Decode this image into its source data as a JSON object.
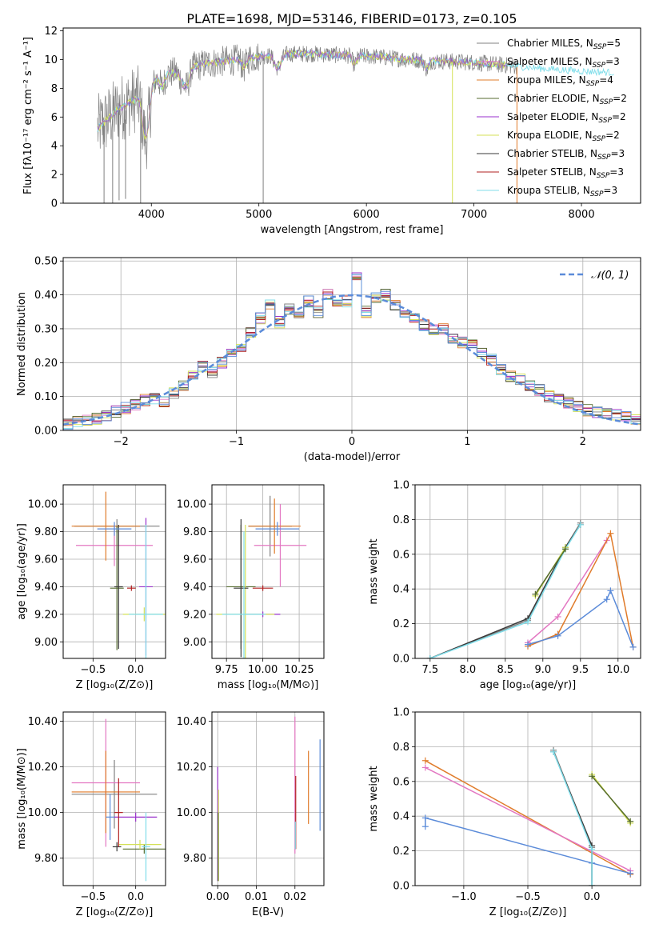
{
  "title": "PLATE=1698, MJD=53146, FIBERID=0173, z=0.105",
  "colors": {
    "Chabrier MILES": "#808080",
    "Salpeter MILES": "#e377c2",
    "Kroupa MILES": "#e07b2a",
    "Chabrier ELODIE": "#556b2f",
    "Salpeter ELODIE": "#9932cc",
    "Kroupa ELODIE": "#d4e157",
    "Chabrier STELIB": "#3a3a3a",
    "Salpeter STELIB": "#b22222",
    "Kroupa STELIB": "#80deea",
    "blue": "#5b8bd9",
    "grid": "#b0b0b0"
  },
  "chart_data": [
    {
      "id": "spectrum",
      "type": "line",
      "xlabel": "wavelength [Angstrom, rest frame]",
      "ylabel": "Flux [fλ10⁻¹⁷ erg cm⁻² s⁻¹ A⁻¹]",
      "xlim": [
        3180,
        8550
      ],
      "ylim": [
        0,
        12.2
      ],
      "xticks": [
        4000,
        5000,
        6000,
        7000,
        8000
      ],
      "yticks": [
        0,
        2,
        4,
        6,
        8,
        10,
        12
      ],
      "grid": false,
      "legend_position": "upper-right",
      "legend": [
        {
          "label": "Chabrier MILES, N",
          "sub": "SSP",
          "suffix": "=5",
          "colorKey": "Chabrier MILES"
        },
        {
          "label": "Salpeter MILES, N",
          "sub": "SSP",
          "suffix": "=3",
          "colorKey": "Salpeter MILES"
        },
        {
          "label": "Kroupa MILES, N",
          "sub": "SSP",
          "suffix": "=4",
          "colorKey": "Kroupa MILES"
        },
        {
          "label": "Chabrier ELODIE, N",
          "sub": "SSP",
          "suffix": "=2",
          "colorKey": "Chabrier ELODIE"
        },
        {
          "label": "Salpeter ELODIE, N",
          "sub": "SSP",
          "suffix": "=2",
          "colorKey": "Salpeter ELODIE"
        },
        {
          "label": "Kroupa ELODIE, N",
          "sub": "SSP",
          "suffix": "=2",
          "colorKey": "Kroupa ELODIE"
        },
        {
          "label": "Chabrier STELIB, N",
          "sub": "SSP",
          "suffix": "=3",
          "colorKey": "Chabrier STELIB"
        },
        {
          "label": "Salpeter STELIB, N",
          "sub": "SSP",
          "suffix": "=3",
          "colorKey": "Salpeter STELIB"
        },
        {
          "label": "Kroupa STELIB, N",
          "sub": "SSP",
          "suffix": "=3",
          "colorKey": "Kroupa STELIB"
        }
      ],
      "continuum": {
        "x": [
          3500,
          3600,
          3700,
          3800,
          3900,
          4000,
          4100,
          4200,
          4300,
          4500,
          4700,
          4900,
          5100,
          5300,
          5500,
          5800,
          6100,
          6400,
          6700,
          7000,
          7300,
          7600,
          8000,
          8300
        ],
        "y": [
          5.2,
          5.9,
          6.6,
          7.0,
          7.5,
          8.4,
          8.9,
          9.1,
          9.3,
          9.7,
          9.9,
          10.1,
          10.3,
          10.4,
          10.4,
          10.3,
          10.2,
          10.0,
          9.9,
          9.8,
          9.6,
          9.4,
          9.2,
          9.1
        ]
      }
    },
    {
      "id": "residuals",
      "type": "histogram",
      "xlabel": "(data-model)/error",
      "ylabel": "Normed distribution",
      "xlim": [
        -2.5,
        2.5
      ],
      "ylim": [
        0,
        0.51
      ],
      "xticks": [
        -2,
        -1,
        0,
        1,
        2
      ],
      "yticks": [
        0.0,
        0.1,
        0.2,
        0.3,
        0.4,
        0.5
      ],
      "grid": true,
      "legend_position": "upper-right",
      "legend_label": "𝒩(0, 1)",
      "bin_edges_start": -2.5,
      "bin_width": 0.1,
      "base_values": [
        0.02,
        0.025,
        0.03,
        0.035,
        0.04,
        0.055,
        0.065,
        0.075,
        0.09,
        0.095,
        0.085,
        0.11,
        0.13,
        0.16,
        0.19,
        0.17,
        0.2,
        0.23,
        0.25,
        0.29,
        0.33,
        0.37,
        0.32,
        0.36,
        0.34,
        0.38,
        0.35,
        0.4,
        0.37,
        0.38,
        0.45,
        0.35,
        0.39,
        0.4,
        0.37,
        0.35,
        0.33,
        0.31,
        0.3,
        0.3,
        0.27,
        0.26,
        0.25,
        0.23,
        0.21,
        0.18,
        0.16,
        0.15,
        0.13,
        0.12,
        0.1,
        0.09,
        0.08,
        0.07,
        0.06,
        0.055,
        0.05,
        0.045,
        0.04,
        0.035
      ],
      "normal_curve": {
        "mean": 0,
        "sigma": 1
      }
    },
    {
      "id": "age-vs-Z",
      "type": "errorbar",
      "xlabel": "Z [log₁₀(Z/Z⊙)]",
      "ylabel": "age  [log₁₀(age/yr)]",
      "xlim": [
        -0.85,
        0.35
      ],
      "ylim": [
        8.88,
        10.14
      ],
      "xticks": [
        -0.5,
        0.0
      ],
      "yticks": [
        9.0,
        9.2,
        9.4,
        9.6,
        9.8,
        10.0
      ],
      "grid": true,
      "points": [
        {
          "x": -0.22,
          "y": 9.84,
          "xerr": 0.5,
          "yerr": 0.05,
          "colorKey": "Chabrier MILES"
        },
        {
          "x": -0.25,
          "y": 9.7,
          "xerr": 0.45,
          "yerr": 0.15,
          "colorKey": "Salpeter MILES"
        },
        {
          "x": -0.35,
          "y": 9.84,
          "xerr": 0.4,
          "yerr": 0.25,
          "colorKey": "Kroupa MILES"
        },
        {
          "x": -0.22,
          "y": 9.39,
          "xerr": 0.08,
          "yerr": 0.45,
          "colorKey": "Chabrier ELODIE"
        },
        {
          "x": 0.12,
          "y": 9.4,
          "xerr": 0.08,
          "yerr": 0.5,
          "colorKey": "Salpeter ELODIE"
        },
        {
          "x": 0.1,
          "y": 9.2,
          "xerr": 0.25,
          "yerr": 0.05,
          "colorKey": "Kroupa ELODIE"
        },
        {
          "x": -0.2,
          "y": 9.4,
          "xerr": 0.05,
          "yerr": 0.45,
          "colorKey": "Chabrier STELIB"
        },
        {
          "x": -0.05,
          "y": 9.39,
          "xerr": 0.05,
          "yerr": 0.02,
          "colorKey": "Salpeter STELIB"
        },
        {
          "x": 0.12,
          "y": 9.2,
          "xerr": 0.2,
          "yerr": 0.65,
          "colorKey": "Kroupa STELIB"
        },
        {
          "x": -0.25,
          "y": 9.82,
          "xerr": 0.2,
          "yerr": 0.05,
          "colorKey": "blue"
        }
      ]
    },
    {
      "id": "age-vs-mass",
      "type": "errorbar",
      "xlabel": "mass [log₁₀(M/M⊙)]",
      "ylabel": "",
      "xlim": [
        9.65,
        10.42
      ],
      "ylim": [
        8.88,
        10.14
      ],
      "xticks": [
        9.75,
        10.0,
        10.25
      ],
      "yticks": [
        9.0,
        9.2,
        9.4,
        9.6,
        9.8,
        10.0
      ],
      "grid": true,
      "points": [
        {
          "x": 10.05,
          "y": 9.84,
          "xerr": 0.15,
          "yerr": 0.22,
          "colorKey": "Chabrier MILES"
        },
        {
          "x": 10.12,
          "y": 9.7,
          "xerr": 0.18,
          "yerr": 0.3,
          "colorKey": "Salpeter MILES"
        },
        {
          "x": 10.08,
          "y": 9.84,
          "xerr": 0.18,
          "yerr": 0.2,
          "colorKey": "Kroupa MILES"
        },
        {
          "x": 9.85,
          "y": 9.4,
          "xerr": 0.1,
          "yerr": 0.45,
          "colorKey": "Chabrier ELODIE"
        },
        {
          "x": 10.0,
          "y": 9.2,
          "xerr": 0.12,
          "yerr": 0.02,
          "colorKey": "Salpeter ELODIE"
        },
        {
          "x": 9.88,
          "y": 9.2,
          "xerr": 0.2,
          "yerr": 0.65,
          "colorKey": "Kroupa ELODIE"
        },
        {
          "x": 9.85,
          "y": 9.39,
          "xerr": 0.05,
          "yerr": 0.5,
          "colorKey": "Chabrier STELIB"
        },
        {
          "x": 10.0,
          "y": 9.39,
          "xerr": 0.07,
          "yerr": 0.02,
          "colorKey": "Salpeter STELIB"
        },
        {
          "x": 9.87,
          "y": 9.2,
          "xerr": 0.15,
          "yerr": 0.6,
          "colorKey": "Kroupa STELIB"
        },
        {
          "x": 10.1,
          "y": 9.82,
          "xerr": 0.15,
          "yerr": 0.05,
          "colorKey": "blue"
        }
      ]
    },
    {
      "id": "mass-weight-vs-age",
      "type": "line",
      "xlabel": "age  [log₁₀(age/yr)]",
      "ylabel": "mass weight",
      "xlim": [
        7.3,
        10.3
      ],
      "ylim": [
        0,
        1.0
      ],
      "xticks": [
        7.5,
        8.0,
        8.5,
        9.0,
        9.5,
        10.0
      ],
      "yticks": [
        0.0,
        0.2,
        0.4,
        0.6,
        0.8,
        1.0
      ],
      "grid": true,
      "series": [
        {
          "colorKey": "Chabrier MILES",
          "x": [
            7.5,
            8.8,
            9.3,
            9.5
          ],
          "y": [
            0.0,
            0.22,
            0.64,
            0.78
          ]
        },
        {
          "colorKey": "Chabrier STELIB",
          "x": [
            7.5,
            8.8,
            9.3,
            9.5
          ],
          "y": [
            0.0,
            0.23,
            0.64,
            0.77
          ]
        },
        {
          "colorKey": "Kroupa STELIB",
          "x": [
            7.5,
            8.8,
            9.3,
            9.5
          ],
          "y": [
            0.0,
            0.21,
            0.63,
            0.77
          ]
        },
        {
          "colorKey": "Kroupa ELODIE",
          "x": [
            8.9,
            9.3
          ],
          "y": [
            0.36,
            0.64
          ]
        },
        {
          "colorKey": "Chabrier ELODIE",
          "x": [
            8.9,
            9.3
          ],
          "y": [
            0.37,
            0.63
          ]
        },
        {
          "colorKey": "Salpeter MILES",
          "x": [
            8.8,
            9.2,
            9.85
          ],
          "y": [
            0.09,
            0.24,
            0.68
          ]
        },
        {
          "colorKey": "Kroupa MILES",
          "x": [
            8.8,
            9.2,
            9.9,
            10.2
          ],
          "y": [
            0.07,
            0.14,
            0.72,
            0.065
          ]
        },
        {
          "colorKey": "blue",
          "x": [
            8.8,
            9.2,
            9.85,
            9.9,
            10.2
          ],
          "y": [
            0.08,
            0.13,
            0.34,
            0.39,
            0.065
          ]
        }
      ]
    },
    {
      "id": "mass-vs-Z",
      "type": "errorbar",
      "xlabel": "Z [log₁₀(Z/Z⊙)]",
      "ylabel": "mass [log₁₀(M/M⊙)]",
      "xlim": [
        -0.85,
        0.35
      ],
      "ylim": [
        9.68,
        10.44
      ],
      "xticks": [
        -0.5,
        0.0
      ],
      "yticks": [
        9.8,
        10.0,
        10.2,
        10.4
      ],
      "grid": true,
      "points": [
        {
          "x": -0.25,
          "y": 10.08,
          "xerr": 0.5,
          "yerr": 0.15,
          "colorKey": "Chabrier MILES"
        },
        {
          "x": -0.35,
          "y": 10.13,
          "xerr": 0.4,
          "yerr": 0.28,
          "colorKey": "Salpeter MILES"
        },
        {
          "x": -0.35,
          "y": 10.09,
          "xerr": 0.4,
          "yerr": 0.18,
          "colorKey": "Kroupa MILES"
        },
        {
          "x": 0.1,
          "y": 9.84,
          "xerr": 0.25,
          "yerr": 0.02,
          "colorKey": "Chabrier ELODIE"
        },
        {
          "x": 0.0,
          "y": 9.98,
          "xerr": 0.25,
          "yerr": 0.02,
          "colorKey": "Salpeter ELODIE"
        },
        {
          "x": 0.05,
          "y": 9.86,
          "xerr": 0.25,
          "yerr": 0.02,
          "colorKey": "Kroupa ELODIE"
        },
        {
          "x": -0.22,
          "y": 9.85,
          "xerr": 0.05,
          "yerr": 0.02,
          "colorKey": "Chabrier STELIB"
        },
        {
          "x": -0.2,
          "y": 10.0,
          "xerr": 0.05,
          "yerr": 0.15,
          "colorKey": "Salpeter STELIB"
        },
        {
          "x": 0.12,
          "y": 9.85,
          "xerr": 0.05,
          "yerr": 0.15,
          "colorKey": "Kroupa STELIB"
        },
        {
          "x": -0.3,
          "y": 9.98,
          "xerr": 0.05,
          "yerr": 0.1,
          "colorKey": "blue"
        }
      ]
    },
    {
      "id": "mass-vs-ebv",
      "type": "errorbar",
      "xlabel": "E(B-V)",
      "ylabel": "",
      "xlim": [
        -0.0015,
        0.0275
      ],
      "ylim": [
        9.68,
        10.44
      ],
      "xticks": [
        0.0,
        0.01,
        0.02
      ],
      "yticks": [
        9.8,
        10.0,
        10.2,
        10.4
      ],
      "grid": true,
      "points": [
        {
          "x": 0.0,
          "y": 9.95,
          "xerr": 0,
          "yerr": 0.25,
          "colorKey": "Salpeter ELODIE"
        },
        {
          "x": 0.0002,
          "y": 9.9,
          "xerr": 0,
          "yerr": 0.2,
          "colorKey": "Kroupa ELODIE"
        },
        {
          "x": 0.0001,
          "y": 9.85,
          "xerr": 0,
          "yerr": 0.15,
          "colorKey": "Chabrier ELODIE"
        },
        {
          "x": 0.02,
          "y": 10.12,
          "xerr": 0,
          "yerr": 0.3,
          "colorKey": "Salpeter MILES"
        },
        {
          "x": 0.0202,
          "y": 10.0,
          "xerr": 0,
          "yerr": 0.16,
          "colorKey": "Salpeter STELIB"
        },
        {
          "x": 0.0201,
          "y": 9.9,
          "xerr": 0,
          "yerr": 0.06,
          "colorKey": "Kroupa STELIB"
        },
        {
          "x": 0.0235,
          "y": 10.11,
          "xerr": 0,
          "yerr": 0.16,
          "colorKey": "Kroupa MILES"
        },
        {
          "x": 0.0265,
          "y": 10.12,
          "xerr": 0,
          "yerr": 0.2,
          "colorKey": "blue"
        }
      ]
    },
    {
      "id": "mass-weight-vs-Z",
      "type": "line",
      "xlabel": "Z [log₁₀(Z/Z⊙)]",
      "ylabel": "mass weight",
      "xlim": [
        -1.38,
        0.38
      ],
      "ylim": [
        0,
        1.0
      ],
      "xticks": [
        -1.0,
        -0.5,
        0.0
      ],
      "yticks": [
        0.0,
        0.2,
        0.4,
        0.6,
        0.8,
        1.0
      ],
      "grid": true,
      "series": [
        {
          "colorKey": "Kroupa MILES",
          "x": [
            -1.3,
            0.3
          ],
          "y": [
            0.72,
            0.065
          ]
        },
        {
          "colorKey": "Salpeter MILES",
          "x": [
            -1.3,
            0.3
          ],
          "y": [
            0.68,
            0.085
          ]
        },
        {
          "colorKey": "blue",
          "x": [
            -1.3,
            -1.3,
            0.0,
            0.3
          ],
          "y": [
            0.34,
            0.39,
            0.13,
            0.07
          ]
        },
        {
          "colorKey": "Chabrier MILES",
          "x": [
            -0.3,
            0.0,
            0.0
          ],
          "y": [
            0.78,
            0.22,
            0.0
          ]
        },
        {
          "colorKey": "Chabrier STELIB",
          "x": [
            -0.3,
            0.0,
            0.0
          ],
          "y": [
            0.77,
            0.23,
            0.0
          ]
        },
        {
          "colorKey": "Kroupa STELIB",
          "x": [
            -0.3,
            0.0,
            0.0
          ],
          "y": [
            0.77,
            0.21,
            0.0
          ]
        },
        {
          "colorKey": "Kroupa ELODIE",
          "x": [
            0.0,
            0.3
          ],
          "y": [
            0.64,
            0.36
          ]
        },
        {
          "colorKey": "Chabrier ELODIE",
          "x": [
            0.0,
            0.3
          ],
          "y": [
            0.63,
            0.37
          ]
        }
      ]
    }
  ]
}
